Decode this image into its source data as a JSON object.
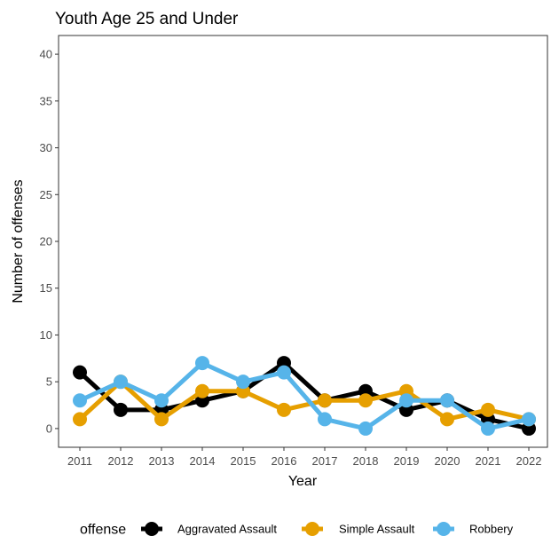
{
  "chart_data": {
    "type": "line",
    "title": "Youth Age 25 and Under",
    "xlabel": "Year",
    "ylabel": "Number of offenses",
    "categories": [
      "2011",
      "2012",
      "2013",
      "2014",
      "2015",
      "2016",
      "2017",
      "2018",
      "2019",
      "2020",
      "2021",
      "2022"
    ],
    "ylim": [
      -2,
      42
    ],
    "yticks": [
      0,
      5,
      10,
      15,
      20,
      25,
      30,
      35,
      40
    ],
    "grid": false,
    "legend": {
      "title": "offense",
      "position": "bottom"
    },
    "series": [
      {
        "name": "Aggravated Assault",
        "color": "#000000",
        "values": [
          6,
          2,
          2,
          3,
          4,
          7,
          3,
          4,
          2,
          3,
          1,
          0
        ]
      },
      {
        "name": "Simple Assault",
        "color": "#E69F00",
        "values": [
          1,
          5,
          1,
          4,
          4,
          2,
          3,
          3,
          4,
          1,
          2,
          1
        ]
      },
      {
        "name": "Robbery",
        "color": "#56B4E9",
        "values": [
          3,
          5,
          3,
          7,
          5,
          6,
          1,
          0,
          3,
          3,
          0,
          1
        ]
      }
    ]
  }
}
